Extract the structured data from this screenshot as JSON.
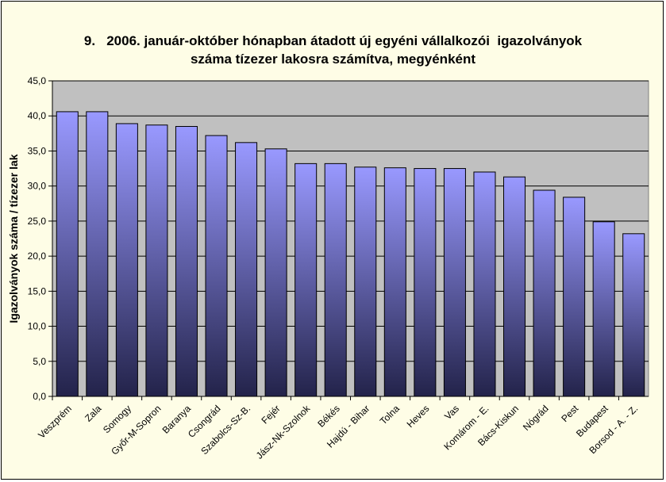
{
  "chart_data": {
    "type": "bar",
    "title_line1": "9.   2006. január-október hónapban átadott új egyéni vállalkozói  igazolványok",
    "title_line2": "száma tízezer lakosra számítva, megyénként",
    "xlabel": "",
    "ylabel": "Igazolványok száma / tízezer lak",
    "ylim": [
      0,
      45
    ],
    "yticks": [
      "0,0",
      "5,0",
      "10,0",
      "15,0",
      "20,0",
      "25,0",
      "30,0",
      "35,0",
      "40,0",
      "45,0"
    ],
    "grid": true,
    "legend": "none",
    "categories": [
      "Veszprém",
      "Zala",
      "Somogy",
      "Győr-M-Sopron",
      "Baranya",
      "Csongrád",
      "Szabolcs-Sz-B.",
      "Fejér",
      "Jász-Nk-Szolnok",
      "Békés",
      "Hajdú - Bihar",
      "Tolna",
      "Heves",
      "Vas",
      "Komárom - E.",
      "Bács-Kiskun",
      "Nógrád",
      "Pest",
      "Budapest",
      "Borsod - A. - Z."
    ],
    "values": [
      40.6,
      40.6,
      38.9,
      38.7,
      38.5,
      37.2,
      36.2,
      35.3,
      33.2,
      33.2,
      32.7,
      32.6,
      32.5,
      32.5,
      32.0,
      31.3,
      29.4,
      28.4,
      24.9,
      23.2
    ],
    "colors": {
      "plot_area": "#c0c0c0",
      "bar_top": "#9999ff",
      "bar_bottom": "#23234a",
      "frame_bg": "#fefde6"
    }
  }
}
